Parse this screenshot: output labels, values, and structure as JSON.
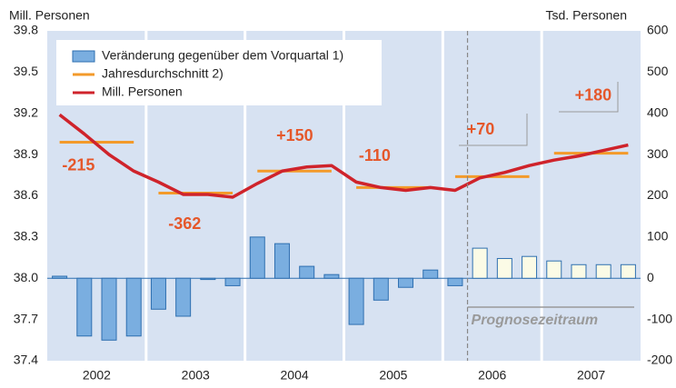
{
  "chart_data": {
    "type": "combo",
    "y_label": "Mill. Personen",
    "y2_label": "Tsd. Personen",
    "ylim": [
      37.4,
      39.8
    ],
    "yticks": [
      37.4,
      37.7,
      {
        "value": 38,
        "label": "38.0"
      },
      38.3,
      38.6,
      38.9,
      39.2,
      39.5,
      39.8
    ],
    "y2lim": [
      -200,
      600
    ],
    "y2ticks": [
      -200,
      -100,
      0,
      100,
      200,
      300,
      400,
      500,
      600
    ],
    "years": [
      "2002",
      "2003",
      "2004",
      "2005",
      "2006",
      "2007"
    ],
    "series": [
      {
        "name": "Veränderung gegenüber dem Vorquartal 1)",
        "type": "bar",
        "axis": "y2",
        "color": "#7aaee0",
        "colors": [
          "#7aaee0",
          "#7aaee0",
          "#7aaee0",
          "#7aaee0",
          "#7aaee0",
          "#7aaee0",
          "#7aaee0",
          "#7aaee0",
          "#7aaee0",
          "#7aaee0",
          "#7aaee0",
          "#7aaee0",
          "#7aaee0",
          "#7aaee0",
          "#7aaee0",
          "#7aaee0",
          "#7aaee0",
          "#fbfbe6",
          "#fbfbe6",
          "#fbfbe6",
          "#fbfbe6",
          "#fbfbe6",
          "#fbfbe6",
          "#fbfbe6"
        ],
        "values": [
          5,
          -140,
          -150,
          -140,
          -75,
          -92,
          -3,
          -18,
          100,
          84,
          29,
          9,
          -112,
          -53,
          -22,
          20,
          -18,
          73,
          48,
          53,
          42,
          33,
          33,
          33
        ]
      },
      {
        "name": "Jahresdurchschnitt 2)",
        "type": "annual",
        "color": "#f39a2a",
        "values": [
          38.99,
          38.62,
          38.78,
          38.66,
          38.74,
          38.91
        ]
      },
      {
        "name": "Mill. Personen",
        "type": "line",
        "color": "#cf232b",
        "values": [
          39.19,
          39.05,
          38.9,
          38.78,
          38.7,
          38.61,
          38.61,
          38.59,
          38.69,
          38.78,
          38.81,
          38.82,
          38.7,
          38.66,
          38.64,
          38.66,
          38.64,
          38.73,
          38.77,
          38.82,
          38.86,
          38.89,
          38.93,
          38.97
        ]
      }
    ],
    "annual_changes": {
      "values": [
        -215,
        -362,
        150,
        -110,
        70,
        180
      ],
      "value_labels": [
        "-215",
        "-362",
        "+150",
        "-110",
        "+70",
        "+180"
      ]
    },
    "forecast_label": "Prognosezeitraum"
  }
}
